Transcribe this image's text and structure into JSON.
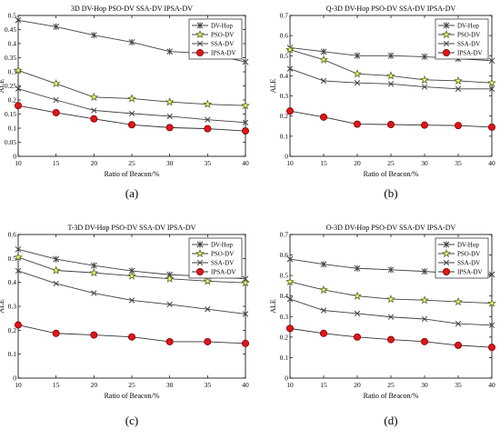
{
  "figure": {
    "panels": [
      {
        "caption": "(a)",
        "chart_data": {
          "type": "line",
          "title": "3D DV-Hop PSO-DV SSA-DV IPSA-DV",
          "xlabel": "Ratio of Beacon/%",
          "ylabel": "ALE",
          "x": [
            10,
            15,
            20,
            25,
            30,
            35,
            40
          ],
          "xticks": [
            "10",
            "15",
            "20",
            "25",
            "30",
            "35",
            "40"
          ],
          "xlim": [
            10,
            40
          ],
          "ylim": [
            0,
            0.5
          ],
          "yticks": [
            "0",
            "0.05",
            "0.1",
            "0.15",
            "0.2",
            "0.25",
            "0.3",
            "0.35",
            "0.4",
            "0.45",
            "0.5"
          ],
          "legend_position": "top-right",
          "grid": false,
          "series": [
            {
              "name": "DV-Hop",
              "marker": "asterisk",
              "color": "#404040",
              "values": [
                0.483,
                0.46,
                0.43,
                0.405,
                0.372,
                0.365,
                0.335
              ]
            },
            {
              "name": "PSO-DV",
              "marker": "star",
              "color": "#404040",
              "values": [
                0.305,
                0.258,
                0.21,
                0.205,
                0.193,
                0.185,
                0.18
              ]
            },
            {
              "name": "SSA-DV",
              "marker": "cross",
              "color": "#404040",
              "values": [
                0.24,
                0.2,
                0.163,
                0.152,
                0.142,
                0.13,
                0.12
              ]
            },
            {
              "name": "IPSA-DV",
              "marker": "circle",
              "color": "#e0151b",
              "values": [
                0.18,
                0.155,
                0.133,
                0.112,
                0.102,
                0.098,
                0.09
              ]
            }
          ]
        }
      },
      {
        "caption": "(b)",
        "chart_data": {
          "type": "line",
          "title": "Q-3D DV-Hop PSO-DV SSA-DV IPSA-DV",
          "xlabel": "Ratio of Beacon/%",
          "ylabel": "ALE",
          "x": [
            10,
            15,
            20,
            25,
            30,
            35,
            40
          ],
          "xticks": [
            "10",
            "15",
            "20",
            "25",
            "30",
            "35",
            "40"
          ],
          "xlim": [
            10,
            40
          ],
          "ylim": [
            0,
            0.7
          ],
          "yticks": [
            "0",
            "0.1",
            "0.2",
            "0.3",
            "0.4",
            "0.5",
            "0.6",
            "0.7"
          ],
          "legend_position": "top-right",
          "grid": false,
          "series": [
            {
              "name": "DV-Hop",
              "marker": "asterisk",
              "color": "#404040",
              "values": [
                0.54,
                0.52,
                0.5,
                0.5,
                0.495,
                0.485,
                0.475
              ]
            },
            {
              "name": "PSO-DV",
              "marker": "star",
              "color": "#404040",
              "values": [
                0.53,
                0.48,
                0.41,
                0.4,
                0.38,
                0.375,
                0.365
              ]
            },
            {
              "name": "SSA-DV",
              "marker": "cross",
              "color": "#404040",
              "values": [
                0.435,
                0.375,
                0.365,
                0.36,
                0.345,
                0.335,
                0.335
              ]
            },
            {
              "name": "IPSA-DV",
              "marker": "circle",
              "color": "#e0151b",
              "values": [
                0.225,
                0.195,
                0.16,
                0.158,
                0.155,
                0.153,
                0.145
              ]
            }
          ]
        }
      },
      {
        "caption": "(c)",
        "chart_data": {
          "type": "line",
          "title": "T-3D DV-Hop PSO-DV SSA-DV IPSA-DV",
          "xlabel": "Ratio of Beacon/%",
          "ylabel": "ALE",
          "x": [
            10,
            15,
            20,
            25,
            30,
            35,
            40
          ],
          "xticks": [
            "10",
            "15",
            "20",
            "25",
            "30",
            "35",
            "40"
          ],
          "xlim": [
            10,
            40
          ],
          "ylim": [
            0,
            0.6
          ],
          "yticks": [
            "0",
            "0.1",
            "0.2",
            "0.3",
            "0.4",
            "0.5",
            "0.6"
          ],
          "legend_position": "top-right",
          "grid": false,
          "series": [
            {
              "name": "DV-Hop",
              "marker": "asterisk",
              "color": "#404040",
              "values": [
                0.538,
                0.497,
                0.47,
                0.448,
                0.432,
                0.425,
                0.415
              ]
            },
            {
              "name": "PSO-DV",
              "marker": "star",
              "color": "#404040",
              "values": [
                0.505,
                0.45,
                0.44,
                0.427,
                0.415,
                0.405,
                0.398
              ]
            },
            {
              "name": "SSA-DV",
              "marker": "cross",
              "color": "#404040",
              "values": [
                0.448,
                0.395,
                0.355,
                0.325,
                0.308,
                0.288,
                0.268
              ]
            },
            {
              "name": "IPSA-DV",
              "marker": "circle",
              "color": "#e0151b",
              "values": [
                0.222,
                0.187,
                0.18,
                0.172,
                0.152,
                0.152,
                0.145
              ]
            }
          ]
        }
      },
      {
        "caption": "(d)",
        "chart_data": {
          "type": "line",
          "title": "O-3D DV-Hop PSO-DV SSA-DV IPSA-DV",
          "xlabel": "Ratio of Beacon/%",
          "ylabel": "ALE",
          "x": [
            10,
            15,
            20,
            25,
            30,
            35,
            40
          ],
          "xticks": [
            "10",
            "15",
            "20",
            "25",
            "30",
            "35",
            "40"
          ],
          "xlim": [
            10,
            40
          ],
          "ylim": [
            0,
            0.7
          ],
          "yticks": [
            "0",
            "0.1",
            "0.2",
            "0.3",
            "0.4",
            "0.5",
            "0.6",
            "0.7"
          ],
          "legend_position": "top-right",
          "grid": false,
          "series": [
            {
              "name": "DV-Hop",
              "marker": "asterisk",
              "color": "#404040",
              "values": [
                0.58,
                0.555,
                0.535,
                0.528,
                0.52,
                0.51,
                0.505
              ]
            },
            {
              "name": "PSO-DV",
              "marker": "star",
              "color": "#404040",
              "values": [
                0.47,
                0.43,
                0.4,
                0.385,
                0.38,
                0.372,
                0.365
              ]
            },
            {
              "name": "SSA-DV",
              "marker": "cross",
              "color": "#404040",
              "values": [
                0.385,
                0.33,
                0.315,
                0.298,
                0.288,
                0.265,
                0.258
              ]
            },
            {
              "name": "IPSA-DV",
              "marker": "circle",
              "color": "#e0151b",
              "values": [
                0.242,
                0.218,
                0.2,
                0.188,
                0.178,
                0.16,
                0.15
              ]
            }
          ]
        }
      }
    ]
  }
}
